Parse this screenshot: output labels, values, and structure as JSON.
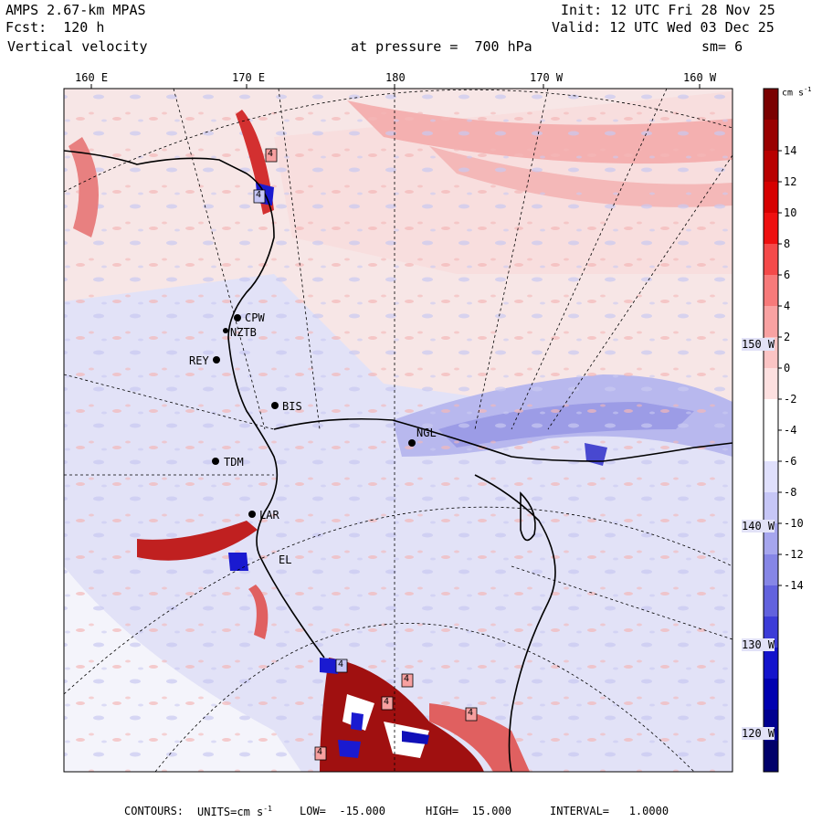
{
  "header": {
    "model": "AMPS 2.67-km MPAS",
    "fcst": "Fcst:  120 h",
    "field": "Vertical velocity",
    "init": "Init: 12 UTC Fri 28 Nov 25",
    "valid": "Valid: 12 UTC Wed 03 Dec 25",
    "pressure": "at pressure =  700 hPa",
    "smooth": "sm= 6"
  },
  "top_lon_labels": [
    "160 E",
    "170 E",
    "180",
    "170 W",
    "160 W"
  ],
  "right_lat_labels": [
    "150 W",
    "140 W",
    "130 W",
    "120 W"
  ],
  "stations": [
    {
      "id": "CPW"
    },
    {
      "id": "NZTB"
    },
    {
      "id": "REY"
    },
    {
      "id": "BIS"
    },
    {
      "id": "TDM"
    },
    {
      "id": "LAR"
    },
    {
      "id": "EL"
    },
    {
      "id": "NGL"
    }
  ],
  "colorbar": {
    "units": "cm s",
    "units_exp": "-1",
    "ticks": [
      "14",
      "12",
      "10",
      "8",
      "6",
      "4",
      "2",
      "0",
      "-2",
      "-4",
      "-6",
      "-8",
      "-10",
      "-12",
      "-14"
    ],
    "colors": [
      "#7a0000",
      "#990000",
      "#b80000",
      "#d60000",
      "#ee1010",
      "#f44a4a",
      "#f77a7a",
      "#f9a2a2",
      "#fbc4c4",
      "#fde0e0",
      "#ffffff",
      "#ffffff",
      "#e0e0fc",
      "#c6c6f6",
      "#a6a6ee",
      "#8686e6",
      "#6262de",
      "#3c3cd8",
      "#1414cc",
      "#0000b0",
      "#000090",
      "#00006a"
    ]
  },
  "contour_labels": [
    "4",
    "4",
    "4",
    "4",
    "4",
    "4",
    "4"
  ],
  "footer": {
    "contours": "CONTOURS:",
    "units": "UNITS=cm s",
    "units_exp": "-1",
    "low": "LOW=  -15.000",
    "high": "HIGH=  15.000",
    "interval": "INTERVAL=   1.0000"
  }
}
